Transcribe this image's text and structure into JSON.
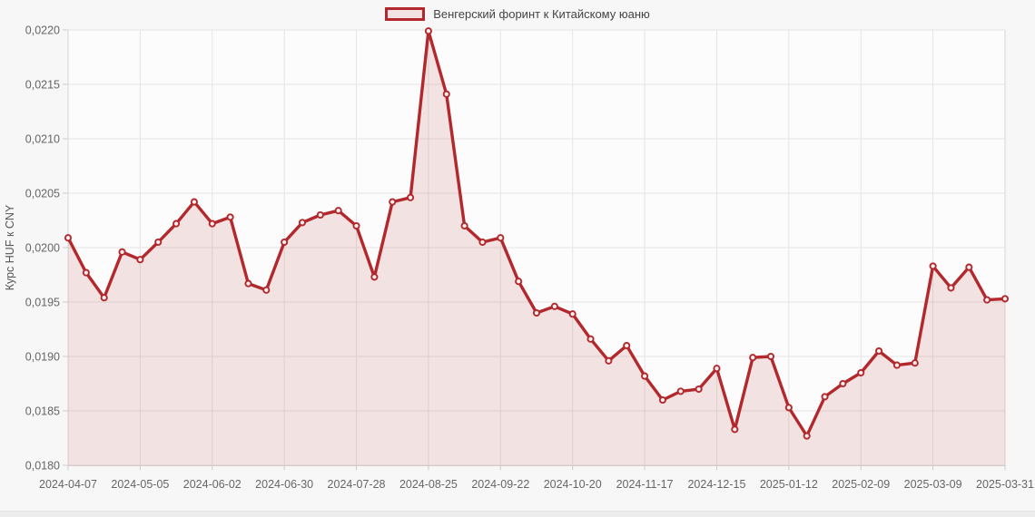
{
  "legend": {
    "label": "Венгерский форинт к Китайскому юаню"
  },
  "chart_data": {
    "type": "area",
    "title": "",
    "series_name": "Венгерский форинт к Китайскому юаню",
    "xlabel": "",
    "ylabel": "Курс HUF к CNY",
    "ylim": [
      0.018,
      0.022
    ],
    "grid": true,
    "legend_position": "top-center",
    "marker": "open-circle",
    "x": [
      "2024-04-07",
      "2024-04-14",
      "2024-04-21",
      "2024-04-28",
      "2024-05-05",
      "2024-05-12",
      "2024-05-19",
      "2024-05-26",
      "2024-06-02",
      "2024-06-09",
      "2024-06-16",
      "2024-06-23",
      "2024-06-30",
      "2024-07-07",
      "2024-07-14",
      "2024-07-21",
      "2024-07-28",
      "2024-08-04",
      "2024-08-11",
      "2024-08-18",
      "2024-08-25",
      "2024-09-01",
      "2024-09-08",
      "2024-09-15",
      "2024-09-22",
      "2024-09-29",
      "2024-10-06",
      "2024-10-13",
      "2024-10-20",
      "2024-10-27",
      "2024-11-03",
      "2024-11-10",
      "2024-11-17",
      "2024-11-24",
      "2024-12-01",
      "2024-12-08",
      "2024-12-15",
      "2024-12-22",
      "2024-12-29",
      "2025-01-05",
      "2025-01-12",
      "2025-01-19",
      "2025-01-26",
      "2025-02-02",
      "2025-02-09",
      "2025-02-16",
      "2025-02-23",
      "2025-03-02",
      "2025-03-09",
      "2025-03-16",
      "2025-03-23",
      "2025-03-30",
      "2025-03-31"
    ],
    "values": [
      0.02009,
      0.01977,
      0.01954,
      0.01996,
      0.01989,
      0.02005,
      0.02022,
      0.02042,
      0.02022,
      0.02028,
      0.01967,
      0.01961,
      0.02005,
      0.02023,
      0.0203,
      0.02034,
      0.0202,
      0.01973,
      0.02042,
      0.02046,
      0.02199,
      0.02141,
      0.0202,
      0.02005,
      0.02009,
      0.01969,
      0.0194,
      0.01946,
      0.01939,
      0.01916,
      0.01896,
      0.0191,
      0.01882,
      0.0186,
      0.01868,
      0.0187,
      0.01889,
      0.01833,
      0.01899,
      0.019,
      0.01853,
      0.01827,
      0.01863,
      0.01875,
      0.01885,
      0.01905,
      0.01892,
      0.01894,
      0.01983,
      0.01963,
      0.01982,
      0.01952,
      0.01953
    ],
    "x_tick_indices": [
      0,
      4,
      8,
      12,
      16,
      20,
      24,
      28,
      32,
      36,
      40,
      44,
      48,
      52
    ],
    "x_tick_labels": [
      "2024-04-07",
      "2024-05-05",
      "2024-06-02",
      "2024-06-30",
      "2024-07-28",
      "2024-08-25",
      "2024-09-22",
      "2024-10-20",
      "2024-11-17",
      "2024-12-15",
      "2025-01-12",
      "2025-02-09",
      "2025-03-09",
      "2025-03-31"
    ],
    "y_ticks": [
      0.022,
      0.0215,
      0.021,
      0.0205,
      0.02,
      0.0195,
      0.019,
      0.0185,
      0.018
    ],
    "y_tick_labels": [
      "0,0220",
      "0,0215",
      "0,0210",
      "0,0205",
      "0,0200",
      "0,0195",
      "0,0190",
      "0,0185",
      "0,0180"
    ],
    "colors": {
      "line": "#b3282d",
      "fill": "rgba(179,40,45,0.12)",
      "marker_fill": "#f8eeee",
      "grid": "#e5e5e5",
      "axis": "#d6d6d6",
      "tick_mark": "#cccccc",
      "tick_text": "#666666",
      "legend_text": "#444444",
      "swatch_fill": "#f2e2e3",
      "plot_bg": "#fcfcfc",
      "page_bg": "#f7f7f7"
    }
  }
}
